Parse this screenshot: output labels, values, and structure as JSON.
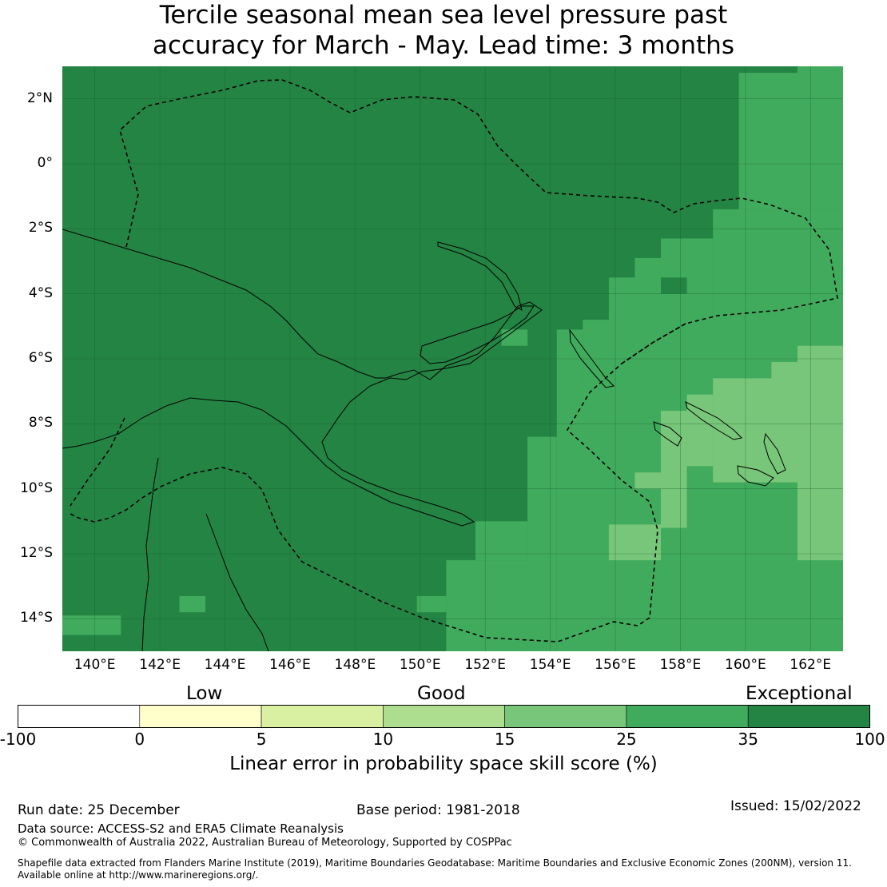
{
  "title": {
    "line1": "Tercile seasonal mean sea level pressure past",
    "line2": "accuracy for March - May. Lead time: 3 months"
  },
  "map": {
    "lon_min": 139,
    "lon_max": 163,
    "lat_min": -15,
    "lat_max": 3,
    "lon_ticks": [
      "140°E",
      "142°E",
      "144°E",
      "146°E",
      "148°E",
      "150°E",
      "152°E",
      "154°E",
      "156°E",
      "158°E",
      "160°E",
      "162°E"
    ],
    "lat_ticks": [
      "2°N",
      "0°",
      "2°S",
      "4°S",
      "6°S",
      "8°S",
      "10°S",
      "12°S",
      "14°S"
    ],
    "grid_cells": [
      {
        "lon0": 159.8,
        "lon1": 161.6,
        "lat0": -1.4,
        "lat1": 2.8,
        "cat": "25-35"
      },
      {
        "lon0": 161.6,
        "lon1": 163,
        "lat0": -1.4,
        "lat1": 3,
        "cat": "25-35"
      },
      {
        "lon0": 159.0,
        "lon1": 163,
        "lat0": -6.1,
        "lat1": -1.4,
        "cat": "25-35"
      },
      {
        "lon0": 157.4,
        "lon1": 159.0,
        "lat0": -5.0,
        "lat1": -2.3,
        "cat": "25-35"
      },
      {
        "lon0": 156.6,
        "lon1": 157.4,
        "lat0": -5.0,
        "lat1": -2.9,
        "cat": "25-35"
      },
      {
        "lon0": 155.8,
        "lon1": 156.6,
        "lat0": -5.0,
        "lat1": -3.5,
        "cat": "25-35"
      },
      {
        "lon0": 157.4,
        "lon1": 158.2,
        "lat0": -4.0,
        "lat1": -3.5,
        "cat": "35-100"
      },
      {
        "lon0": 155.0,
        "lon1": 163,
        "lat0": -8.5,
        "lat1": -4.8,
        "cat": "25-35"
      },
      {
        "lon0": 154.2,
        "lon1": 155.0,
        "lat0": -6.9,
        "lat1": -5.1,
        "cat": "25-35"
      },
      {
        "lon0": 152.5,
        "lon1": 153.3,
        "lat0": -5.6,
        "lat1": -5.1,
        "cat": "25-35"
      },
      {
        "lon0": 154.2,
        "lon1": 163,
        "lat0": -15,
        "lat1": -6.9,
        "cat": "25-35"
      },
      {
        "lon0": 153.3,
        "lon1": 154.2,
        "lat0": -15,
        "lat1": -8.4,
        "cat": "25-35"
      },
      {
        "lon0": 150.8,
        "lon1": 153.3,
        "lat0": -15,
        "lat1": -12.2,
        "cat": "25-35"
      },
      {
        "lon0": 151.7,
        "lon1": 153.3,
        "lat0": -12.2,
        "lat1": -11.0,
        "cat": "25-35"
      },
      {
        "lon0": 149.9,
        "lon1": 150.8,
        "lat0": -13.8,
        "lat1": -13.3,
        "cat": "25-35"
      },
      {
        "lon0": 142.6,
        "lon1": 143.4,
        "lat0": -13.8,
        "lat1": -13.3,
        "cat": "25-35"
      },
      {
        "lon0": 139.0,
        "lon1": 140.8,
        "lat0": -14.5,
        "lat1": -13.9,
        "cat": "25-35"
      },
      {
        "lon0": 161.6,
        "lon1": 163,
        "lat0": -12.2,
        "lat1": -5.6,
        "cat": "15-25"
      },
      {
        "lon0": 160.8,
        "lon1": 161.6,
        "lat0": -9.8,
        "lat1": -6.1,
        "cat": "15-25"
      },
      {
        "lon0": 159.0,
        "lon1": 160.8,
        "lat0": -9.8,
        "lat1": -6.6,
        "cat": "15-25"
      },
      {
        "lon0": 158.2,
        "lon1": 159.0,
        "lat0": -9.3,
        "lat1": -7.1,
        "cat": "15-25"
      },
      {
        "lon0": 157.4,
        "lon1": 158.2,
        "lat0": -11.2,
        "lat1": -7.6,
        "cat": "15-25"
      },
      {
        "lon0": 156.6,
        "lon1": 157.4,
        "lat0": -10.0,
        "lat1": -9.5,
        "cat": "15-25"
      },
      {
        "lon0": 155.8,
        "lon1": 157.4,
        "lat0": -12.2,
        "lat1": -11.1,
        "cat": "15-25"
      }
    ],
    "coastline_note": "",
    "eez_note": ""
  },
  "colorbar": {
    "categories": [
      "Low",
      "Good",
      "Exceptional"
    ],
    "ticks": [
      "-100",
      "0",
      "5",
      "10",
      "15",
      "25",
      "35",
      "100"
    ],
    "colors": [
      "#ffffff",
      "#ffffcc",
      "#d9f0a3",
      "#addd8e",
      "#78c679",
      "#41ab5d",
      "#238443"
    ],
    "label": "Linear error in probability space skill score (%)"
  },
  "footer": {
    "run_date": "Run date: 25 December",
    "base_period": "Base period: 1981-2018",
    "issued": "Issued: 15/02/2022",
    "data_source": "Data source: ACCESS-S2 and ERA5 Climate Reanalysis",
    "copyright": "© Commonwealth of Australia 2022, Australian Bureau of Meteorology, Supported by COSPPac",
    "shapefile_line1": "Shapefile data extracted from Flanders Marine Institute (2019), Maritime Boundaries Geodatabase: Maritime Boundaries and Exclusive Economic Zones (200NM), version 11.",
    "shapefile_line2": "Available online at http://www.marineregions.org/."
  }
}
